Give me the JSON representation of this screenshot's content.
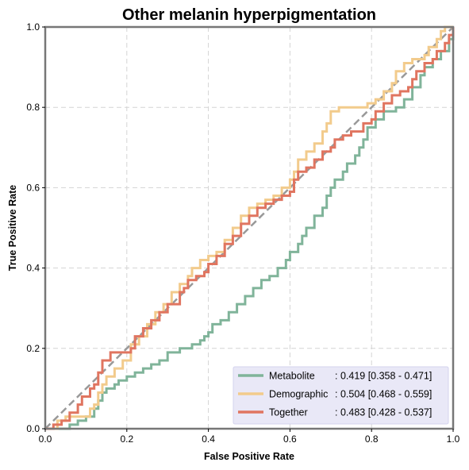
{
  "chart_data": {
    "type": "line",
    "title": "Other melanin hyperpigmentation",
    "xlabel": "False Positive Rate",
    "ylabel": "True Positive Rate",
    "xlim": [
      0,
      1
    ],
    "ylim": [
      0,
      1
    ],
    "xticks": [
      "0.0",
      "0.2",
      "0.4",
      "0.6",
      "0.8",
      "1.0"
    ],
    "yticks": [
      "0.0",
      "0.2",
      "0.4",
      "0.6",
      "0.8",
      "1.0"
    ],
    "grid": true,
    "legend_position": "lower-right",
    "diagonal_color": "#999999",
    "series": [
      {
        "name": "Metabolite",
        "auc_text": ": 0.419 [0.358 - 0.471]",
        "color": "#80b49a",
        "points": [
          [
            0,
            0
          ],
          [
            0.05,
            0
          ],
          [
            0.06,
            0.01
          ],
          [
            0.08,
            0.02
          ],
          [
            0.1,
            0.03
          ],
          [
            0.12,
            0.05
          ],
          [
            0.13,
            0.07
          ],
          [
            0.14,
            0.09
          ],
          [
            0.15,
            0.1
          ],
          [
            0.17,
            0.11
          ],
          [
            0.18,
            0.12
          ],
          [
            0.2,
            0.13
          ],
          [
            0.22,
            0.14
          ],
          [
            0.24,
            0.15
          ],
          [
            0.26,
            0.16
          ],
          [
            0.28,
            0.17
          ],
          [
            0.3,
            0.19
          ],
          [
            0.33,
            0.2
          ],
          [
            0.36,
            0.21
          ],
          [
            0.38,
            0.22
          ],
          [
            0.39,
            0.23
          ],
          [
            0.4,
            0.24
          ],
          [
            0.41,
            0.26
          ],
          [
            0.43,
            0.27
          ],
          [
            0.45,
            0.29
          ],
          [
            0.47,
            0.31
          ],
          [
            0.49,
            0.33
          ],
          [
            0.51,
            0.35
          ],
          [
            0.53,
            0.37
          ],
          [
            0.55,
            0.38
          ],
          [
            0.57,
            0.4
          ],
          [
            0.59,
            0.42
          ],
          [
            0.6,
            0.44
          ],
          [
            0.62,
            0.46
          ],
          [
            0.63,
            0.48
          ],
          [
            0.64,
            0.5
          ],
          [
            0.66,
            0.53
          ],
          [
            0.68,
            0.55
          ],
          [
            0.69,
            0.58
          ],
          [
            0.7,
            0.6
          ],
          [
            0.71,
            0.62
          ],
          [
            0.73,
            0.64
          ],
          [
            0.74,
            0.66
          ],
          [
            0.76,
            0.68
          ],
          [
            0.77,
            0.7
          ],
          [
            0.78,
            0.72
          ],
          [
            0.79,
            0.75
          ],
          [
            0.81,
            0.77
          ],
          [
            0.83,
            0.79
          ],
          [
            0.86,
            0.8
          ],
          [
            0.88,
            0.82
          ],
          [
            0.9,
            0.85
          ],
          [
            0.92,
            0.88
          ],
          [
            0.93,
            0.9
          ],
          [
            0.95,
            0.92
          ],
          [
            0.97,
            0.94
          ],
          [
            0.99,
            0.97
          ],
          [
            1.0,
            1.0
          ]
        ]
      },
      {
        "name": "Demographic",
        "auc_text": ": 0.504 [0.468 - 0.559]",
        "color": "#f2cb8c",
        "points": [
          [
            0,
            0
          ],
          [
            0.02,
            0
          ],
          [
            0.03,
            0.02
          ],
          [
            0.05,
            0.03
          ],
          [
            0.1,
            0.03
          ],
          [
            0.11,
            0.05
          ],
          [
            0.12,
            0.06
          ],
          [
            0.13,
            0.09
          ],
          [
            0.14,
            0.11
          ],
          [
            0.15,
            0.13
          ],
          [
            0.17,
            0.15
          ],
          [
            0.19,
            0.17
          ],
          [
            0.21,
            0.21
          ],
          [
            0.23,
            0.23
          ],
          [
            0.25,
            0.26
          ],
          [
            0.27,
            0.29
          ],
          [
            0.29,
            0.31
          ],
          [
            0.31,
            0.34
          ],
          [
            0.33,
            0.36
          ],
          [
            0.35,
            0.38
          ],
          [
            0.36,
            0.4
          ],
          [
            0.38,
            0.42
          ],
          [
            0.4,
            0.43
          ],
          [
            0.42,
            0.44
          ],
          [
            0.44,
            0.47
          ],
          [
            0.46,
            0.5
          ],
          [
            0.48,
            0.53
          ],
          [
            0.5,
            0.55
          ],
          [
            0.52,
            0.56
          ],
          [
            0.54,
            0.57
          ],
          [
            0.56,
            0.58
          ],
          [
            0.58,
            0.6
          ],
          [
            0.6,
            0.62
          ],
          [
            0.61,
            0.64
          ],
          [
            0.62,
            0.67
          ],
          [
            0.64,
            0.69
          ],
          [
            0.66,
            0.71
          ],
          [
            0.68,
            0.74
          ],
          [
            0.69,
            0.76
          ],
          [
            0.7,
            0.79
          ],
          [
            0.72,
            0.8
          ],
          [
            0.76,
            0.8
          ],
          [
            0.79,
            0.81
          ],
          [
            0.81,
            0.82
          ],
          [
            0.83,
            0.84
          ],
          [
            0.85,
            0.86
          ],
          [
            0.86,
            0.89
          ],
          [
            0.88,
            0.91
          ],
          [
            0.9,
            0.92
          ],
          [
            0.93,
            0.93
          ],
          [
            0.94,
            0.95
          ],
          [
            0.96,
            0.97
          ],
          [
            0.97,
            0.99
          ],
          [
            0.98,
            1.0
          ],
          [
            1.0,
            1.0
          ]
        ]
      },
      {
        "name": "Together",
        "auc_text": ": 0.483 [0.428 - 0.537]",
        "color": "#e07560",
        "points": [
          [
            0,
            0
          ],
          [
            0.02,
            0.01
          ],
          [
            0.04,
            0.02
          ],
          [
            0.06,
            0.04
          ],
          [
            0.08,
            0.06
          ],
          [
            0.09,
            0.08
          ],
          [
            0.11,
            0.1
          ],
          [
            0.12,
            0.11
          ],
          [
            0.13,
            0.14
          ],
          [
            0.14,
            0.17
          ],
          [
            0.16,
            0.19
          ],
          [
            0.2,
            0.19
          ],
          [
            0.21,
            0.2
          ],
          [
            0.22,
            0.23
          ],
          [
            0.24,
            0.25
          ],
          [
            0.26,
            0.27
          ],
          [
            0.28,
            0.29
          ],
          [
            0.3,
            0.31
          ],
          [
            0.33,
            0.34
          ],
          [
            0.34,
            0.35
          ],
          [
            0.35,
            0.37
          ],
          [
            0.37,
            0.38
          ],
          [
            0.39,
            0.39
          ],
          [
            0.4,
            0.41
          ],
          [
            0.42,
            0.43
          ],
          [
            0.44,
            0.46
          ],
          [
            0.46,
            0.48
          ],
          [
            0.48,
            0.51
          ],
          [
            0.5,
            0.53
          ],
          [
            0.52,
            0.55
          ],
          [
            0.54,
            0.56
          ],
          [
            0.56,
            0.57
          ],
          [
            0.58,
            0.58
          ],
          [
            0.6,
            0.59
          ],
          [
            0.61,
            0.62
          ],
          [
            0.62,
            0.64
          ],
          [
            0.64,
            0.65
          ],
          [
            0.66,
            0.67
          ],
          [
            0.68,
            0.69
          ],
          [
            0.7,
            0.7
          ],
          [
            0.71,
            0.72
          ],
          [
            0.73,
            0.73
          ],
          [
            0.75,
            0.74
          ],
          [
            0.78,
            0.76
          ],
          [
            0.8,
            0.77
          ],
          [
            0.81,
            0.79
          ],
          [
            0.83,
            0.81
          ],
          [
            0.85,
            0.83
          ],
          [
            0.87,
            0.84
          ],
          [
            0.89,
            0.85
          ],
          [
            0.9,
            0.87
          ],
          [
            0.91,
            0.89
          ],
          [
            0.93,
            0.91
          ],
          [
            0.95,
            0.92
          ],
          [
            0.96,
            0.94
          ],
          [
            0.98,
            0.96
          ],
          [
            0.99,
            0.98
          ],
          [
            1.0,
            1.0
          ]
        ]
      }
    ]
  }
}
